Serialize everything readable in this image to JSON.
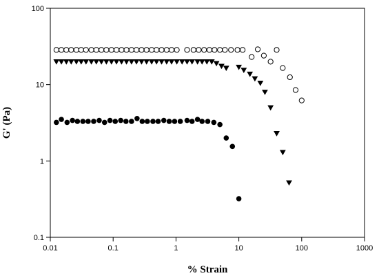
{
  "chart_data": {
    "type": "scatter",
    "title": "",
    "xlabel": "% Strain",
    "ylabel": "G' (Pa)",
    "xscale": "log",
    "yscale": "log",
    "xlim": [
      0.01,
      1000
    ],
    "ylim": [
      0.1,
      100
    ],
    "x_ticks": [
      0.01,
      0.1,
      1,
      10,
      100,
      1000
    ],
    "x_tick_labels": [
      "0.01",
      "0.1",
      "1",
      "10",
      "100",
      "1000"
    ],
    "y_ticks": [
      0.1,
      1,
      10,
      100
    ],
    "y_tick_labels": [
      "0.1",
      "1",
      "10",
      "100"
    ],
    "grid": false,
    "legend": "none",
    "series": [
      {
        "marker": "open-circle",
        "color": "#000000",
        "points": [
          [
            0.0125,
            28.5
          ],
          [
            0.015,
            28.5
          ],
          [
            0.018,
            28.5
          ],
          [
            0.0215,
            28.5
          ],
          [
            0.026,
            28.5
          ],
          [
            0.031,
            28.5
          ],
          [
            0.037,
            28.5
          ],
          [
            0.045,
            28.5
          ],
          [
            0.054,
            28.5
          ],
          [
            0.065,
            28.5
          ],
          [
            0.078,
            28.5
          ],
          [
            0.094,
            28.5
          ],
          [
            0.113,
            28.5
          ],
          [
            0.136,
            28.5
          ],
          [
            0.163,
            28.5
          ],
          [
            0.196,
            28.5
          ],
          [
            0.235,
            28.5
          ],
          [
            0.283,
            28.5
          ],
          [
            0.34,
            28.5
          ],
          [
            0.41,
            28.5
          ],
          [
            0.49,
            28.5
          ],
          [
            0.59,
            28.5
          ],
          [
            0.71,
            28.5
          ],
          [
            0.85,
            28.5
          ],
          [
            1.03,
            28.5
          ],
          [
            1.5,
            28.5
          ],
          [
            1.9,
            28.5
          ],
          [
            2.3,
            28.5
          ],
          [
            2.8,
            28.5
          ],
          [
            3.4,
            28.5
          ],
          [
            4.1,
            28.5
          ],
          [
            5.0,
            28.5
          ],
          [
            6.0,
            28.5
          ],
          [
            7.5,
            28.5
          ],
          [
            9.5,
            28.5
          ],
          [
            11.5,
            28.5
          ],
          [
            16,
            23
          ],
          [
            20,
            29
          ],
          [
            25,
            24
          ],
          [
            32,
            20
          ],
          [
            40,
            28.5
          ],
          [
            50,
            16.5
          ],
          [
            65,
            12.5
          ],
          [
            80,
            8.5
          ],
          [
            100,
            6.2
          ]
        ]
      },
      {
        "marker": "filled-triangle-down",
        "color": "#000000",
        "points": [
          [
            0.0125,
            20
          ],
          [
            0.015,
            20
          ],
          [
            0.018,
            20
          ],
          [
            0.0215,
            20
          ],
          [
            0.026,
            20
          ],
          [
            0.031,
            20
          ],
          [
            0.037,
            20
          ],
          [
            0.045,
            20
          ],
          [
            0.054,
            20
          ],
          [
            0.065,
            20
          ],
          [
            0.078,
            20
          ],
          [
            0.094,
            20
          ],
          [
            0.113,
            20
          ],
          [
            0.136,
            20
          ],
          [
            0.163,
            20
          ],
          [
            0.196,
            20
          ],
          [
            0.235,
            20
          ],
          [
            0.283,
            20
          ],
          [
            0.34,
            20
          ],
          [
            0.41,
            20
          ],
          [
            0.49,
            20
          ],
          [
            0.59,
            20
          ],
          [
            0.71,
            20
          ],
          [
            0.85,
            20
          ],
          [
            1.03,
            20
          ],
          [
            1.25,
            20
          ],
          [
            1.5,
            20
          ],
          [
            1.8,
            20
          ],
          [
            2.2,
            20
          ],
          [
            2.6,
            20
          ],
          [
            3.1,
            20
          ],
          [
            3.7,
            20
          ],
          [
            4.4,
            19
          ],
          [
            5.3,
            17.5
          ],
          [
            6.3,
            16.5
          ],
          [
            10,
            17
          ],
          [
            12,
            15.5
          ],
          [
            15,
            13.8
          ],
          [
            18,
            12
          ],
          [
            22,
            10.5
          ],
          [
            26,
            8
          ],
          [
            32,
            5
          ],
          [
            40,
            2.3
          ],
          [
            50,
            1.3
          ],
          [
            63,
            0.52
          ]
        ]
      },
      {
        "marker": "filled-circle",
        "color": "#000000",
        "points": [
          [
            0.0125,
            3.2
          ],
          [
            0.015,
            3.5
          ],
          [
            0.0185,
            3.2
          ],
          [
            0.0225,
            3.4
          ],
          [
            0.027,
            3.3
          ],
          [
            0.033,
            3.3
          ],
          [
            0.04,
            3.3
          ],
          [
            0.049,
            3.3
          ],
          [
            0.06,
            3.4
          ],
          [
            0.073,
            3.2
          ],
          [
            0.089,
            3.4
          ],
          [
            0.108,
            3.3
          ],
          [
            0.132,
            3.4
          ],
          [
            0.16,
            3.3
          ],
          [
            0.196,
            3.3
          ],
          [
            0.24,
            3.6
          ],
          [
            0.29,
            3.3
          ],
          [
            0.35,
            3.3
          ],
          [
            0.43,
            3.3
          ],
          [
            0.52,
            3.3
          ],
          [
            0.64,
            3.4
          ],
          [
            0.78,
            3.3
          ],
          [
            0.95,
            3.3
          ],
          [
            1.17,
            3.3
          ],
          [
            1.5,
            3.4
          ],
          [
            1.8,
            3.3
          ],
          [
            2.2,
            3.5
          ],
          [
            2.6,
            3.3
          ],
          [
            3.2,
            3.3
          ],
          [
            4.0,
            3.2
          ],
          [
            5.0,
            3.0
          ],
          [
            6.3,
            2.0
          ],
          [
            7.9,
            1.55
          ],
          [
            10,
            0.32
          ]
        ]
      }
    ]
  }
}
